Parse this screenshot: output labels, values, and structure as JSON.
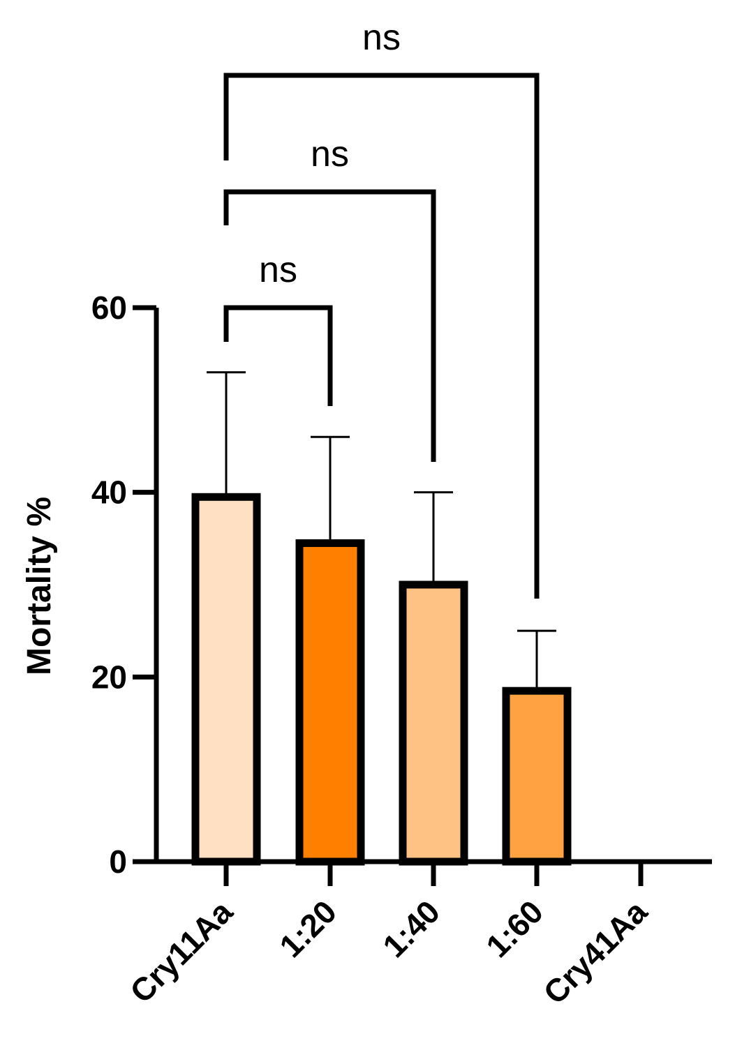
{
  "chart_data": {
    "type": "bar",
    "categories": [
      "Cry11Aa",
      "1:20",
      "1:40",
      "1:60",
      "Cry41Aa"
    ],
    "values": [
      39.5,
      34.5,
      30,
      18.5,
      0
    ],
    "errors": [
      13.5,
      11.5,
      10,
      6.5,
      0
    ],
    "colors": [
      "#FFE0C2",
      "#FF8000",
      "#FFC285",
      "#FFA342",
      "#FFA342"
    ],
    "ylabel": "Mortality %",
    "xlabel": "",
    "ylim": [
      0,
      60
    ],
    "yticks": [
      0,
      20,
      40,
      60
    ],
    "ytick_labels": [
      "0",
      "20",
      "40",
      "60"
    ],
    "grid": false,
    "comparisons": [
      {
        "from": "Cry11Aa",
        "to": "1:20",
        "label": "ns"
      },
      {
        "from": "Cry11Aa",
        "to": "1:40",
        "label": "ns"
      },
      {
        "from": "Cry11Aa",
        "to": "1:60",
        "label": "ns"
      }
    ]
  }
}
